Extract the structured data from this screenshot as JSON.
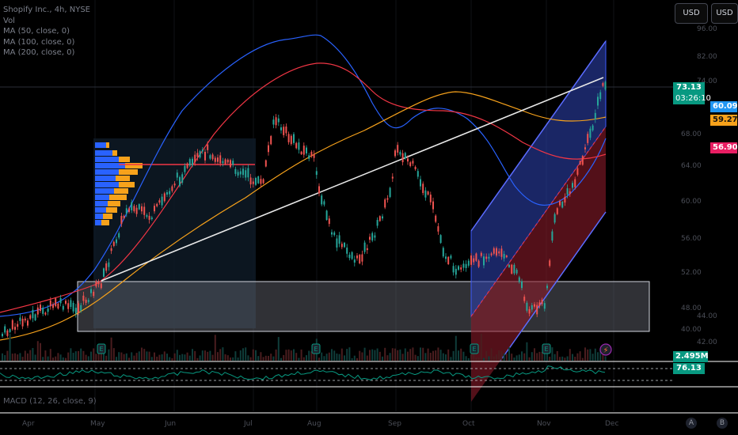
{
  "legend": {
    "symbol": "Shopify Inc., 4h, NYSE",
    "vol": "Vol",
    "ma1": "MA (50, close, 0)",
    "ma2": "MA (100, close, 0)",
    "ma3": "MA (200, close, 0)"
  },
  "currency": {
    "button1": "USD",
    "button2": "USD"
  },
  "price_pills": [
    {
      "label": "73.13",
      "color": "#089981"
    },
    {
      "label": "03:26:10",
      "color": "#089981"
    },
    {
      "label": "60.09",
      "color": "#2196f3"
    },
    {
      "label": "59.27",
      "color": "#f7a21b"
    },
    {
      "label": "56.90",
      "color": "#e91e63"
    },
    {
      "label": "2.495M",
      "color": "#089981"
    },
    {
      "label": "76.13",
      "color": "#089981"
    }
  ],
  "price_axis_labels": [
    "96.00",
    "82.00",
    "74.00",
    "68.00",
    "64.00",
    "60.00",
    "56.00",
    "52.00",
    "48.00",
    "44.00",
    "40.00",
    "42.00"
  ],
  "time_axis_labels": [
    "Apr",
    "May",
    "Jun",
    "Jul",
    "Aug",
    "Sep",
    "Oct",
    "Nov",
    "Dec"
  ],
  "event_markers": [
    "E",
    "E",
    "E",
    "E"
  ],
  "macd_label": "MACD (12, 26, close, 9)",
  "bottom_buttons": [
    "A",
    "B"
  ],
  "colors": {
    "up": "#26a69a",
    "down": "#ef5350",
    "ma50": "#2962ff",
    "ma100": "#f23645",
    "ma200": "#f7a21b",
    "trendline": "#ffffff",
    "rsi": "#089981"
  }
}
